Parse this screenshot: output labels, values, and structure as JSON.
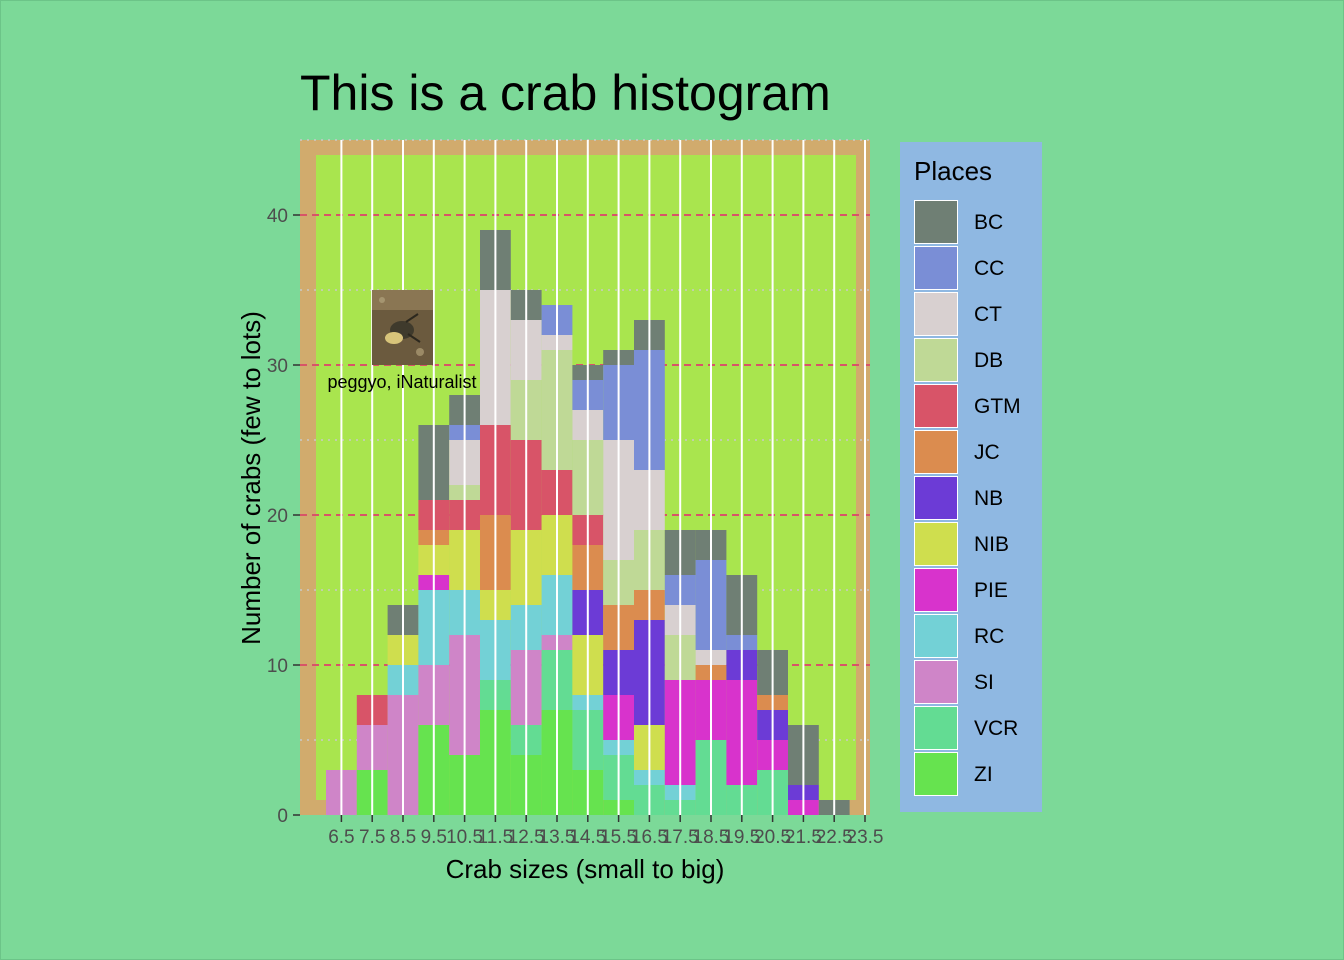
{
  "chart_data": {
    "type": "bar",
    "stacked": true,
    "title": "This is a crab histogram",
    "xlabel": "Crab sizes (small to big)",
    "ylabel": "Number of crabs (few to lots)",
    "legend_title": "Places",
    "legend_position": "right",
    "ylim": [
      0,
      45
    ],
    "yticks": [
      0,
      10,
      20,
      30,
      40
    ],
    "categories": [
      "6.5",
      "7.5",
      "8.5",
      "9.5",
      "10.5",
      "11.5",
      "12.5",
      "13.5",
      "14.5",
      "15.5",
      "16.5",
      "17.5",
      "18.5",
      "19.5",
      "20.5",
      "21.5",
      "22.5",
      "23.5"
    ],
    "series": [
      {
        "name": "ZI",
        "color": "#66e34f",
        "values": [
          0,
          3,
          0,
          6,
          4,
          7,
          4,
          7,
          3,
          1,
          0,
          0,
          0,
          0,
          0,
          0,
          0,
          0
        ]
      },
      {
        "name": "VCR",
        "color": "#63dc93",
        "values": [
          0,
          0,
          0,
          0,
          0,
          2,
          2,
          4,
          4,
          3,
          2,
          1,
          5,
          2,
          3,
          0,
          0,
          0
        ]
      },
      {
        "name": "SI",
        "color": "#cf85c8",
        "values": [
          3,
          3,
          8,
          4,
          8,
          0,
          5,
          1,
          0,
          0,
          0,
          0,
          0,
          0,
          0,
          0,
          0,
          0
        ]
      },
      {
        "name": "RC",
        "color": "#73d1d6",
        "values": [
          0,
          0,
          2,
          5,
          3,
          4,
          3,
          4,
          1,
          1,
          1,
          1,
          0,
          0,
          0,
          0,
          0,
          0
        ]
      },
      {
        "name": "PIE",
        "color": "#d833cc",
        "values": [
          0,
          0,
          0,
          1,
          0,
          0,
          0,
          0,
          0,
          3,
          0,
          7,
          4,
          7,
          2,
          1,
          0,
          0
        ]
      },
      {
        "name": "NIB",
        "color": "#cfde4e",
        "values": [
          0,
          0,
          2,
          2,
          4,
          2,
          5,
          4,
          4,
          0,
          3,
          0,
          0,
          0,
          0,
          0,
          0,
          0
        ]
      },
      {
        "name": "NB",
        "color": "#6c3bd6",
        "values": [
          0,
          0,
          0,
          0,
          0,
          0,
          0,
          0,
          3,
          3,
          7,
          0,
          0,
          2,
          2,
          1,
          0,
          0
        ]
      },
      {
        "name": "JC",
        "color": "#db8c4f",
        "values": [
          0,
          0,
          0,
          1,
          0,
          5,
          0,
          0,
          3,
          3,
          2,
          0,
          1,
          0,
          1,
          0,
          0,
          0
        ]
      },
      {
        "name": "GTM",
        "color": "#d85468",
        "values": [
          0,
          2,
          0,
          2,
          2,
          6,
          6,
          3,
          2,
          0,
          0,
          0,
          0,
          0,
          0,
          0,
          0,
          0
        ]
      },
      {
        "name": "DB",
        "color": "#bfd996",
        "values": [
          0,
          0,
          0,
          0,
          1,
          0,
          4,
          8,
          5,
          3,
          4,
          3,
          0,
          0,
          0,
          0,
          0,
          0
        ]
      },
      {
        "name": "CT",
        "color": "#d8d0d0",
        "values": [
          0,
          0,
          0,
          0,
          3,
          9,
          4,
          1,
          2,
          8,
          4,
          2,
          1,
          0,
          0,
          0,
          0,
          0
        ]
      },
      {
        "name": "CC",
        "color": "#7a8ed6",
        "values": [
          0,
          0,
          0,
          0,
          1,
          0,
          0,
          2,
          2,
          5,
          8,
          2,
          6,
          1,
          0,
          0,
          0,
          0
        ]
      },
      {
        "name": "BC",
        "color": "#6f7f74",
        "values": [
          0,
          0,
          2,
          5,
          2,
          4,
          2,
          0,
          1,
          1,
          2,
          3,
          2,
          4,
          3,
          4,
          1,
          0
        ]
      }
    ],
    "annotation": "peggyo, iNaturalist"
  },
  "colors": {
    "page_background": "#7cd998",
    "panel_border": "#d1ab6d",
    "panel_fill": "#a9e54e",
    "major_gridline": "#d85468",
    "minor_gridline": "#c9c9c9",
    "legend_background": "#8fb8e2"
  },
  "image_annotation_icon": "crab-photo-icon"
}
